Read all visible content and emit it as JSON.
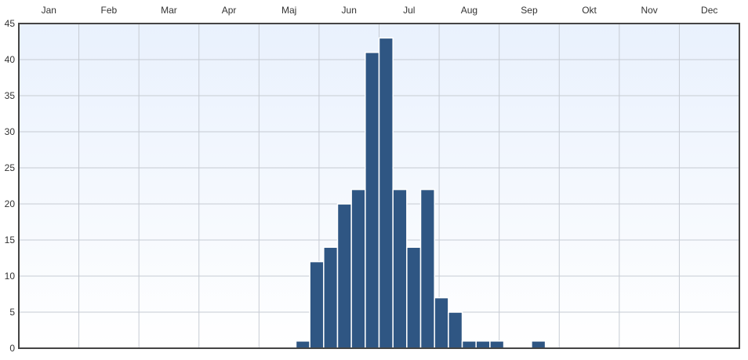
{
  "chart_data": {
    "type": "bar",
    "title": "",
    "xlabel": "",
    "ylabel": "",
    "ylim": [
      0,
      45
    ],
    "y_ticks": [
      0,
      5,
      10,
      15,
      20,
      25,
      30,
      35,
      40,
      45
    ],
    "grid": true,
    "month_labels": [
      "Jan",
      "Feb",
      "Mar",
      "Apr",
      "Maj",
      "Jun",
      "Jul",
      "Aug",
      "Sep",
      "Okt",
      "Nov",
      "Dec"
    ],
    "weeks_per_year": 52,
    "series": [
      {
        "bars": [
          {
            "week": 20,
            "value": 1
          },
          {
            "week": 21,
            "value": 12
          },
          {
            "week": 22,
            "value": 14
          },
          {
            "week": 23,
            "value": 20
          },
          {
            "week": 24,
            "value": 22
          },
          {
            "week": 25,
            "value": 41
          },
          {
            "week": 26,
            "value": 43
          },
          {
            "week": 27,
            "value": 22
          },
          {
            "week": 28,
            "value": 14
          },
          {
            "week": 29,
            "value": 22
          },
          {
            "week": 30,
            "value": 7
          },
          {
            "week": 31,
            "value": 5
          },
          {
            "week": 32,
            "value": 1
          },
          {
            "week": 33,
            "value": 1
          },
          {
            "week": 34,
            "value": 1
          },
          {
            "week": 37,
            "value": 1
          }
        ]
      }
    ],
    "colors": {
      "bar": "#2f5683",
      "bar_edge": "#ffffff",
      "grid": "#c6cbd3",
      "frame": "#444444",
      "plot_bg_top": "#e9f1fd",
      "plot_bg_bottom": "#ffffff"
    }
  }
}
